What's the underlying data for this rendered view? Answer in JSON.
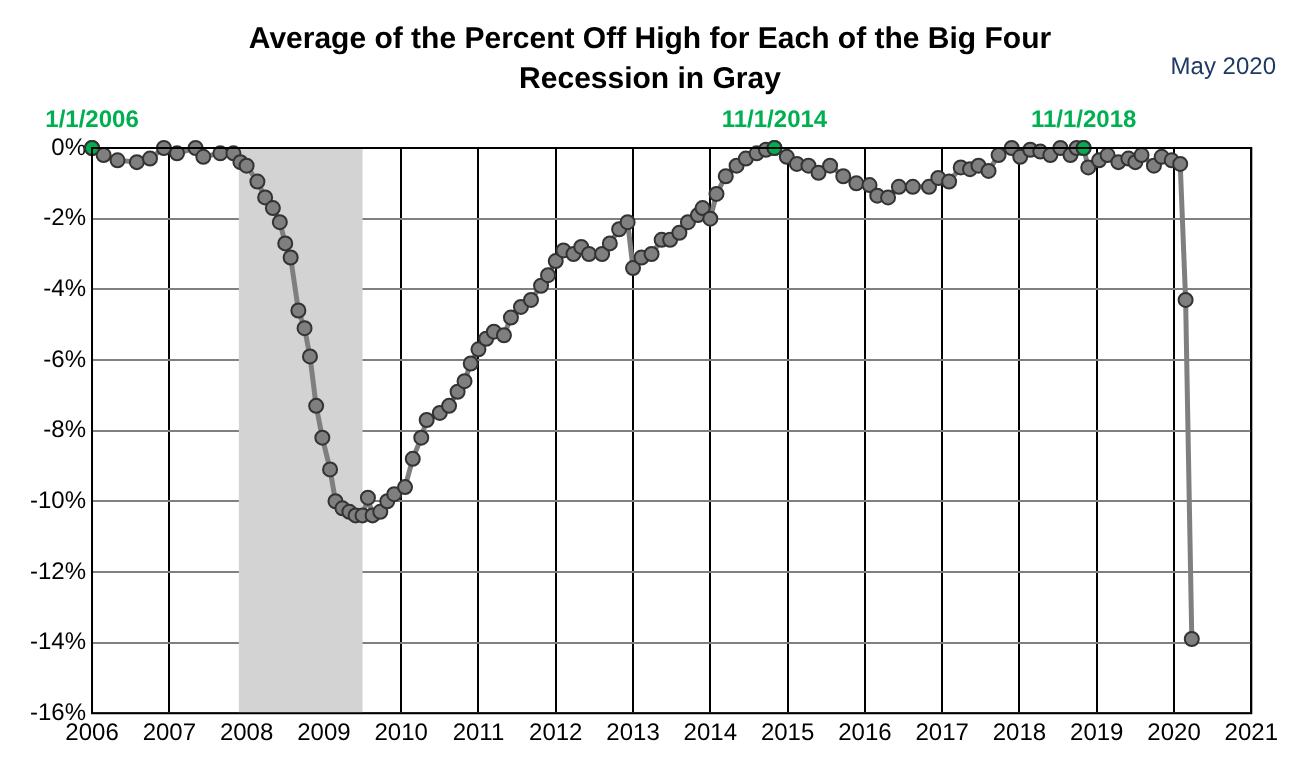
{
  "chart_data": {
    "type": "line",
    "title": "Average of the Percent Off High for Each of the Big Four Recession in Gray",
    "annotations": [
      "May 2020",
      {
        "text": "1/1/2006",
        "x": 2006.0,
        "y": 0
      },
      {
        "text": "11/1/2014",
        "x": 2014.83,
        "y": 0
      },
      {
        "text": "11/1/2018",
        "x": 2018.83,
        "y": 0
      }
    ],
    "xlim": [
      2006,
      2021
    ],
    "xticks": [
      2006,
      2007,
      2008,
      2009,
      2010,
      2011,
      2012,
      2013,
      2014,
      2015,
      2016,
      2017,
      2018,
      2019,
      2020,
      2021
    ],
    "ylim": [
      -16,
      0
    ],
    "yticks": [
      {
        "value": -16,
        "label": "-16%"
      },
      {
        "value": -14,
        "label": "-14%"
      },
      {
        "value": -12,
        "label": "-12%"
      },
      {
        "value": -10,
        "label": "-10%"
      },
      {
        "value": -8,
        "label": "-8%"
      },
      {
        "value": -6,
        "label": "-6%"
      },
      {
        "value": -4,
        "label": "-4%"
      },
      {
        "value": -2,
        "label": "-2%"
      },
      {
        "value": 0,
        "label": "0%"
      }
    ],
    "grid": true,
    "marker": "circle",
    "line_style": "solid",
    "bands": [
      {
        "axis": "x",
        "from": 2007.9,
        "to": 2009.5,
        "color": "#d3d3d3"
      }
    ],
    "series": [
      {
        "color": "#7f7f7f",
        "x": [
          2006.0,
          2006.15,
          2006.33,
          2006.58,
          2006.75,
          2006.93,
          2007.1,
          2007.34,
          2007.44,
          2007.66,
          2007.83,
          2007.92,
          2008.0,
          2008.14,
          2008.24,
          2008.34,
          2008.43,
          2008.5,
          2008.57,
          2008.67,
          2008.75,
          2008.82,
          2008.9,
          2008.98,
          2009.08,
          2009.15,
          2009.24,
          2009.33,
          2009.41,
          2009.5,
          2009.57,
          2009.63,
          2009.73,
          2009.82,
          2009.91,
          2010.05,
          2010.15,
          2010.26,
          2010.33,
          2010.5,
          2010.62,
          2010.73,
          2010.82,
          2010.9,
          2011.0,
          2011.1,
          2011.2,
          2011.33,
          2011.42,
          2011.55,
          2011.68,
          2011.81,
          2011.9,
          2012.0,
          2012.1,
          2012.23,
          2012.33,
          2012.43,
          2012.6,
          2012.7,
          2012.82,
          2012.93,
          2013.0,
          2013.11,
          2013.24,
          2013.37,
          2013.48,
          2013.6,
          2013.71,
          2013.84,
          2013.9,
          2014.0,
          2014.08,
          2014.2,
          2014.34,
          2014.46,
          2014.6,
          2014.72,
          2014.83,
          2014.99,
          2015.12,
          2015.27,
          2015.4,
          2015.55,
          2015.72,
          2015.89,
          2016.06,
          2016.16,
          2016.3,
          2016.44,
          2016.62,
          2016.83,
          2016.95,
          2017.09,
          2017.24,
          2017.36,
          2017.47,
          2017.6,
          2017.73,
          2017.9,
          2018.01,
          2018.14,
          2018.27,
          2018.4,
          2018.53,
          2018.66,
          2018.74,
          2018.83,
          2018.89,
          2019.03,
          2019.14,
          2019.28,
          2019.41,
          2019.5,
          2019.58,
          2019.74,
          2019.84,
          2019.97,
          2020.08,
          2020.15,
          2020.23
        ],
        "values": [
          0,
          -0.2,
          -0.35,
          -0.4,
          -0.3,
          0,
          -0.15,
          0,
          -0.25,
          -0.15,
          -0.15,
          -0.4,
          -0.5,
          -0.95,
          -1.4,
          -1.7,
          -2.1,
          -2.7,
          -3.1,
          -4.6,
          -5.1,
          -5.9,
          -7.3,
          -8.2,
          -9.1,
          -10.0,
          -10.2,
          -10.3,
          -10.4,
          -10.4,
          -9.9,
          -10.4,
          -10.3,
          -10.0,
          -9.8,
          -9.6,
          -8.8,
          -8.2,
          -7.7,
          -7.5,
          -7.3,
          -6.9,
          -6.6,
          -6.1,
          -5.7,
          -5.4,
          -5.2,
          -5.3,
          -4.8,
          -4.5,
          -4.3,
          -3.9,
          -3.6,
          -3.2,
          -2.9,
          -3.0,
          -2.8,
          -3.0,
          -3.0,
          -2.7,
          -2.3,
          -2.1,
          -3.4,
          -3.1,
          -3.0,
          -2.6,
          -2.6,
          -2.4,
          -2.1,
          -1.9,
          -1.7,
          -2.0,
          -1.3,
          -0.8,
          -0.5,
          -0.3,
          -0.15,
          -0.05,
          0,
          -0.25,
          -0.45,
          -0.5,
          -0.7,
          -0.5,
          -0.8,
          -1.0,
          -1.05,
          -1.35,
          -1.4,
          -1.1,
          -1.1,
          -1.1,
          -0.85,
          -0.95,
          -0.55,
          -0.6,
          -0.5,
          -0.65,
          -0.2,
          0,
          -0.25,
          -0.05,
          -0.1,
          -0.2,
          0,
          -0.2,
          0,
          0,
          -0.55,
          -0.35,
          -0.2,
          -0.4,
          -0.3,
          -0.4,
          -0.2,
          -0.5,
          -0.25,
          -0.35,
          -0.45,
          -4.3,
          -13.9
        ]
      },
      {
        "type": "scatter",
        "color": "#00b050",
        "x": [
          2006.0,
          2014.83,
          2018.83
        ],
        "values": [
          0,
          0,
          0
        ]
      }
    ]
  }
}
